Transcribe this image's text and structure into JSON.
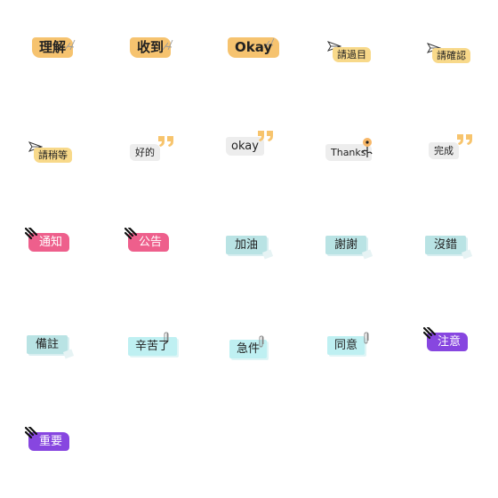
{
  "stickers": {
    "s1": "理解",
    "s2": "收到",
    "s3": "Okay",
    "s4": "請過目",
    "s5": "請確認",
    "s6": "請稍等",
    "s7": "好的",
    "s8": "okay",
    "s9": "Thanks",
    "s10": "完成",
    "s11": "通知",
    "s12": "公告",
    "s13": "加油",
    "s14": "謝謝",
    "s15": "沒錯",
    "s16": "備註",
    "s17": "辛苦了",
    "s18": "急件",
    "s19": "同意",
    "s20": "注意",
    "s21": "重要"
  },
  "colors": {
    "orange": "#f6c36f",
    "yellow": "#f8d98a",
    "grey": "#ededed",
    "quote": "#f7c46d",
    "pink": "#ee5f8c",
    "purple": "#8746e0",
    "teal": "#b9e3e4",
    "cyan": "#bff0f2"
  },
  "icons": {
    "row1_deco": "sparkle-scribble-icon",
    "row1_alt_deco": "paper-plane-icon",
    "row2_deco": "quote-mark-icon",
    "thanks_deco": "flower-icon",
    "alert_deco": "speed-lines-icon",
    "clip_deco": "paperclip-icon"
  }
}
